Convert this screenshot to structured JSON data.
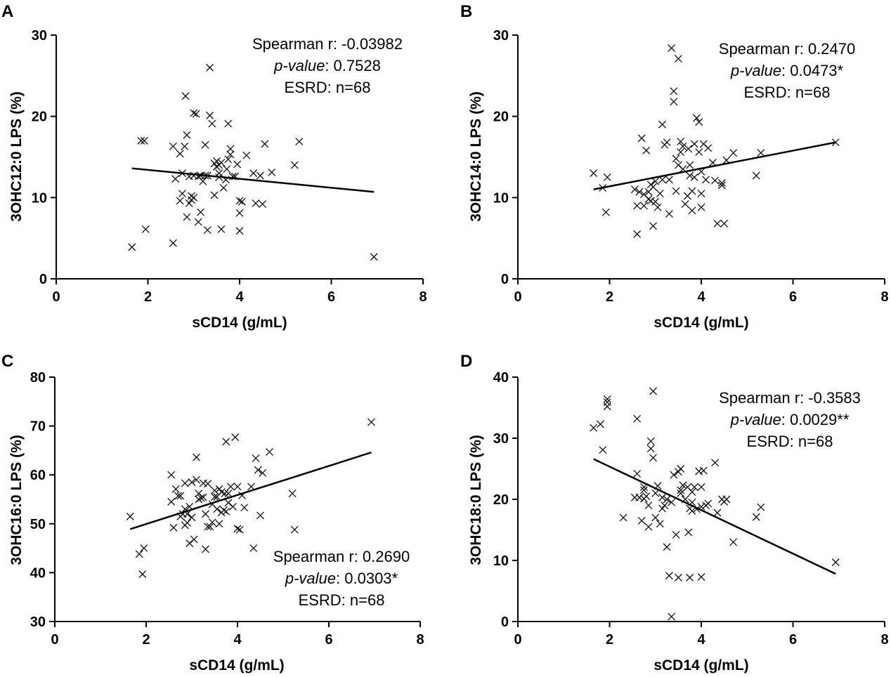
{
  "chart_data": [
    {
      "type": "scatter",
      "panel_label": "A",
      "xlabel": "sCD14 (g/mL)",
      "ylabel": "3OHC12:0 LPS (%)",
      "xlim": [
        0,
        8
      ],
      "ylim": [
        0,
        30
      ],
      "xticks": [
        0,
        2,
        4,
        6,
        8
      ],
      "yticks": [
        0,
        10,
        20,
        30
      ],
      "legend_position": "top-right",
      "annotation": [
        "Spearman r: -0.03982",
        "p-value",
        ": 0.7528",
        "ESRD: n=68"
      ],
      "trendline": {
        "x": [
          1.65,
          6.93
        ],
        "y": [
          13.6,
          10.7
        ]
      },
      "x": [
        1.65,
        1.85,
        1.92,
        1.95,
        2.55,
        2.55,
        2.6,
        2.7,
        2.7,
        2.75,
        2.8,
        2.82,
        2.85,
        2.85,
        2.9,
        2.9,
        2.95,
        3.0,
        3.0,
        3.0,
        3.05,
        3.1,
        3.1,
        3.15,
        3.2,
        3.25,
        3.3,
        3.3,
        3.35,
        3.35,
        3.4,
        3.45,
        3.5,
        3.5,
        3.55,
        3.55,
        3.6,
        3.6,
        3.65,
        3.7,
        3.72,
        3.75,
        3.8,
        3.8,
        3.85,
        3.9,
        3.95,
        4.0,
        4.0,
        4.05,
        4.15,
        4.3,
        4.35,
        4.45,
        4.5,
        4.55,
        4.7,
        5.2,
        5.3,
        6.93,
        2.95,
        3.15,
        2.75,
        3.25,
        3.55,
        3.75,
        4.0,
        3.45
      ],
      "y": [
        3.9,
        17.0,
        17.0,
        6.1,
        16.3,
        4.4,
        12.3,
        15.4,
        9.6,
        10.5,
        16.3,
        22.5,
        7.6,
        17.7,
        12.6,
        9.3,
        9.7,
        20.4,
        10.0,
        12.7,
        20.3,
        12.6,
        7.0,
        8.2,
        12.0,
        16.5,
        6.0,
        12.7,
        26.0,
        20.1,
        19.1,
        10.3,
        14.5,
        13.8,
        13.0,
        12.5,
        14.3,
        6.1,
        11.2,
        12.2,
        13.5,
        19.1,
        16.0,
        15.3,
        12.6,
        12.6,
        14.1,
        8.1,
        5.9,
        9.5,
        15.2,
        13.0,
        9.3,
        12.7,
        9.2,
        16.6,
        13.1,
        14.0,
        16.9,
        2.7,
        10.2,
        12.7,
        13.0,
        12.7,
        14.0,
        14.7,
        9.6,
        14.2
      ]
    },
    {
      "type": "scatter",
      "panel_label": "B",
      "xlabel": "sCD14 (g/mL)",
      "ylabel": "3OHC14:0 LPS (%)",
      "xlim": [
        0,
        8
      ],
      "ylim": [
        0,
        30
      ],
      "xticks": [
        0,
        2,
        4,
        6,
        8
      ],
      "yticks": [
        0,
        10,
        20,
        30
      ],
      "legend_position": "top-right",
      "annotation": [
        "Spearman r: 0.2470",
        "p-value",
        ": 0.0473*",
        "ESRD: n=68"
      ],
      "trendline": {
        "x": [
          1.65,
          6.93
        ],
        "y": [
          11.0,
          16.8
        ]
      },
      "x": [
        1.65,
        1.85,
        1.92,
        1.95,
        2.55,
        2.6,
        2.6,
        2.65,
        2.7,
        2.75,
        2.8,
        2.85,
        2.85,
        2.9,
        2.9,
        2.95,
        3.0,
        3.0,
        3.05,
        3.1,
        3.15,
        3.2,
        3.25,
        3.3,
        3.3,
        3.35,
        3.4,
        3.4,
        3.45,
        3.5,
        3.5,
        3.55,
        3.55,
        3.6,
        3.65,
        3.7,
        3.72,
        3.75,
        3.8,
        3.8,
        3.85,
        3.9,
        3.95,
        3.95,
        4.0,
        4.0,
        4.05,
        4.1,
        4.15,
        4.3,
        4.35,
        4.45,
        4.5,
        4.55,
        4.7,
        5.2,
        5.3,
        6.93,
        2.95,
        3.15,
        3.45,
        3.6,
        3.75,
        4.0,
        4.45,
        2.75,
        3.85,
        4.25
      ],
      "y": [
        13.0,
        11.2,
        8.2,
        12.5,
        11.0,
        9.0,
        5.5,
        10.7,
        17.3,
        9.0,
        15.8,
        10.7,
        9.8,
        9.6,
        11.6,
        6.5,
        12.0,
        9.5,
        8.8,
        10.5,
        19.0,
        16.5,
        16.8,
        8.0,
        12.2,
        28.4,
        23.1,
        21.8,
        10.8,
        14.0,
        27.1,
        16.9,
        15.6,
        16.3,
        9.2,
        10.2,
        16.0,
        14.0,
        8.4,
        10.8,
        16.6,
        19.8,
        19.3,
        15.6,
        8.8,
        10.5,
        16.6,
        12.2,
        16.1,
        12.1,
        6.8,
        11.5,
        6.8,
        14.6,
        15.5,
        12.7,
        15.5,
        16.8,
        11.3,
        12.2,
        14.8,
        13.5,
        12.7,
        13.2,
        11.8,
        10.4,
        12.5,
        14.3
      ]
    },
    {
      "type": "scatter",
      "panel_label": "C",
      "xlabel": "sCD14 (g/mL)",
      "ylabel": "3OHC16:0 LPS (%)",
      "xlim": [
        0,
        8
      ],
      "ylim": [
        30,
        80
      ],
      "xticks": [
        0,
        2,
        4,
        6,
        8
      ],
      "yticks": [
        30,
        40,
        50,
        60,
        70,
        80
      ],
      "legend_position": "bottom-right",
      "annotation": [
        "Spearman r: 0.2690",
        "p-value",
        ": 0.0303*",
        "ESRD: n=68"
      ],
      "trendline": {
        "x": [
          1.65,
          6.93
        ],
        "y": [
          48.9,
          64.6
        ]
      },
      "x": [
        1.65,
        1.85,
        1.92,
        1.95,
        2.55,
        2.55,
        2.6,
        2.65,
        2.7,
        2.75,
        2.8,
        2.85,
        2.85,
        2.9,
        2.9,
        2.95,
        3.0,
        3.0,
        3.05,
        3.1,
        3.1,
        3.15,
        3.2,
        3.25,
        3.3,
        3.3,
        3.35,
        3.35,
        3.4,
        3.45,
        3.5,
        3.5,
        3.55,
        3.55,
        3.6,
        3.6,
        3.65,
        3.7,
        3.72,
        3.75,
        3.8,
        3.8,
        3.85,
        3.9,
        3.95,
        4.0,
        4.0,
        4.05,
        4.15,
        4.3,
        4.35,
        4.4,
        4.45,
        4.5,
        4.55,
        4.7,
        5.2,
        5.25,
        6.93,
        2.95,
        3.15,
        2.75,
        3.45,
        3.65,
        3.75,
        4.1,
        3.25,
        2.85
      ],
      "y": [
        51.5,
        43.8,
        39.7,
        45.0,
        54.5,
        60.0,
        49.2,
        57.1,
        55.7,
        55.7,
        52.0,
        58.3,
        49.7,
        50.2,
        52.0,
        46.0,
        58.5,
        51.3,
        46.8,
        63.6,
        59.0,
        56.2,
        55.3,
        58.3,
        52.0,
        44.8,
        49.4,
        58.2,
        49.4,
        50.3,
        55.5,
        56.8,
        53.0,
        55.5,
        50.0,
        57.1,
        52.3,
        52.8,
        56.2,
        66.8,
        56.2,
        54.3,
        57.6,
        53.5,
        67.7,
        49.0,
        57.6,
        48.8,
        53.3,
        57.6,
        45.0,
        63.4,
        61.0,
        51.7,
        60.4,
        64.7,
        56.2,
        48.8,
        70.8,
        53.5,
        55.0,
        51.5,
        54.0,
        56.5,
        52.5,
        55.8,
        55.4,
        53.0
      ]
    },
    {
      "type": "scatter",
      "panel_label": "D",
      "xlabel": "sCD14 (g/mL)",
      "ylabel": "3OHC18:0 LPS (%)",
      "xlim": [
        0,
        8
      ],
      "ylim": [
        0,
        40
      ],
      "xticks": [
        0,
        2,
        4,
        6,
        8
      ],
      "yticks": [
        0,
        10,
        20,
        30,
        40
      ],
      "legend_position": "top-right",
      "annotation": [
        "Spearman r: -0.3583",
        "p-value",
        ": 0.0029**",
        "ESRD: n=68"
      ],
      "trendline": {
        "x": [
          1.65,
          6.93
        ],
        "y": [
          26.6,
          7.8
        ]
      },
      "x": [
        1.65,
        1.8,
        1.85,
        1.95,
        1.95,
        1.95,
        2.3,
        2.55,
        2.6,
        2.6,
        2.65,
        2.7,
        2.75,
        2.75,
        2.8,
        2.85,
        2.85,
        2.9,
        2.9,
        2.95,
        3.0,
        3.0,
        3.05,
        3.1,
        3.15,
        3.2,
        3.25,
        3.3,
        3.35,
        3.35,
        3.4,
        3.45,
        3.5,
        3.5,
        3.55,
        3.55,
        3.6,
        3.65,
        3.7,
        3.72,
        3.75,
        3.8,
        3.8,
        3.85,
        3.9,
        3.95,
        4.0,
        4.0,
        4.05,
        4.1,
        4.15,
        4.3,
        4.35,
        4.45,
        4.5,
        4.55,
        4.7,
        5.2,
        5.3,
        6.93,
        2.95,
        3.15,
        2.75,
        3.75,
        3.25,
        3.55,
        3.8,
        4.0
      ],
      "y": [
        31.7,
        32.3,
        28.1,
        35.2,
        36.4,
        35.9,
        17.0,
        20.3,
        24.2,
        33.2,
        20.3,
        16.5,
        21.5,
        20.1,
        20.5,
        19.0,
        15.5,
        28.3,
        29.5,
        26.8,
        17.0,
        21.0,
        22.2,
        16.0,
        18.5,
        19.0,
        12.2,
        7.5,
        0.8,
        19.5,
        24.0,
        14.2,
        7.2,
        24.5,
        25.0,
        21.0,
        22.3,
        20.0,
        22.0,
        14.6,
        7.2,
        21.2,
        18.1,
        22.0,
        18.4,
        24.6,
        22.0,
        7.3,
        24.7,
        19.0,
        19.3,
        26.0,
        17.8,
        20.0,
        19.6,
        20.0,
        13.0,
        17.1,
        18.7,
        9.7,
        37.7,
        20.3,
        22.0,
        18.5,
        20.0,
        21.5,
        19.5,
        18.8
      ]
    }
  ]
}
